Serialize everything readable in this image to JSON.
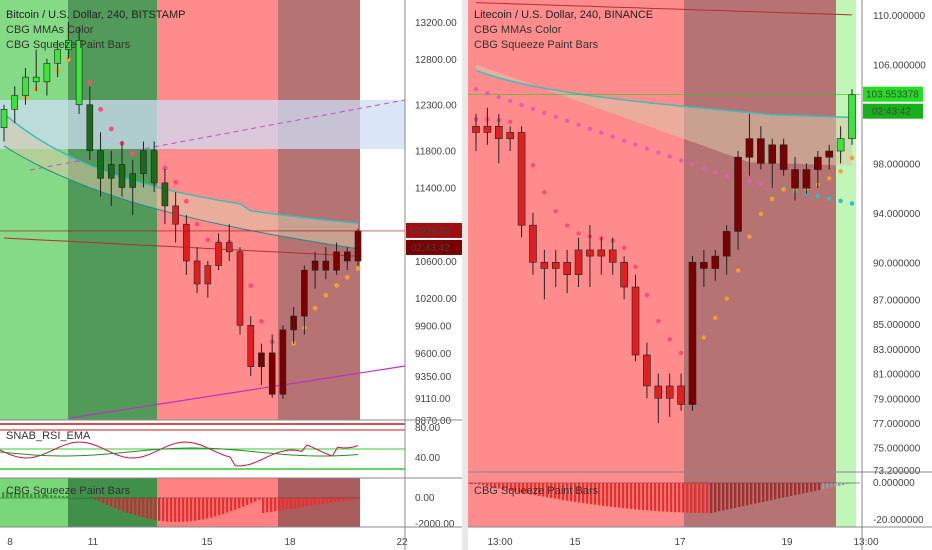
{
  "panels": [
    {
      "id": "btc",
      "legend": [
        "Bitcoin / U.S. Dollar, 240, BITSTAMP",
        "CBG MMAs Color",
        "CBG Squeeze Paint Bars"
      ],
      "price_ticks": [
        "13200.00",
        "12800.00",
        "12300.00",
        "11800.00",
        "11400.00",
        "10926.81",
        "10600.00",
        "10200.00",
        "9900.00",
        "9600.00",
        "9350.00",
        "9110.00",
        "8870.00"
      ],
      "last_price": "10926.81",
      "countdown": "02:43:42",
      "rsi_label": "SNAB_RSI_EMA",
      "rsi_ticks": [
        "80.00",
        "40.00"
      ],
      "squeeze_label": "CBG Squeeze Paint Bars",
      "squeeze_ticks": [
        "0.00",
        "-2000.00"
      ],
      "x_ticks": [
        "8",
        "11",
        "15",
        "18",
        "22"
      ],
      "zones": [
        "green",
        "darkgreen",
        "red",
        "darkred"
      ],
      "candles": [
        [
          12050,
          12300,
          11900,
          12250
        ],
        [
          12250,
          12500,
          12100,
          12400
        ],
        [
          12400,
          12700,
          12300,
          12600
        ],
        [
          12600,
          12900,
          12450,
          12550
        ],
        [
          12550,
          12800,
          12400,
          12750
        ],
        [
          12750,
          13000,
          12600,
          12900
        ],
        [
          12900,
          13200,
          12800,
          13000
        ],
        [
          13000,
          13150,
          12200,
          12300
        ],
        [
          12300,
          12500,
          11700,
          11800
        ],
        [
          11800,
          12000,
          11300,
          11500
        ],
        [
          11500,
          11800,
          11200,
          11650
        ],
        [
          11650,
          11900,
          11300,
          11400
        ],
        [
          11400,
          11700,
          11100,
          11550
        ],
        [
          11550,
          11900,
          11400,
          11800
        ],
        [
          11800,
          11900,
          11350,
          11450
        ],
        [
          11450,
          11600,
          11000,
          11200
        ],
        [
          11200,
          11350,
          10800,
          11000
        ],
        [
          11000,
          11100,
          10450,
          10600
        ],
        [
          10600,
          10750,
          10250,
          10350
        ],
        [
          10350,
          10600,
          10200,
          10550
        ],
        [
          10550,
          10900,
          10500,
          10800
        ],
        [
          10800,
          11000,
          10600,
          10700
        ],
        [
          10700,
          10750,
          9800,
          9900
        ],
        [
          9900,
          10000,
          9350,
          9450
        ],
        [
          9450,
          9700,
          9250,
          9600
        ],
        [
          9600,
          9800,
          9110,
          9150
        ],
        [
          9150,
          9900,
          9100,
          9850
        ],
        [
          9850,
          10100,
          9700,
          10000
        ],
        [
          10000,
          10550,
          9800,
          10500
        ],
        [
          10500,
          10700,
          10300,
          10600
        ],
        [
          10600,
          10750,
          10400,
          10500
        ],
        [
          10500,
          10800,
          10450,
          10700
        ],
        [
          10700,
          10750,
          10500,
          10600
        ],
        [
          10600,
          10950,
          10550,
          10926.81
        ]
      ],
      "candle_colors": [
        "lime",
        "lime",
        "lime",
        "lime",
        "lime",
        "lime",
        "lime",
        "lime",
        "green",
        "green",
        "green",
        "green",
        "green",
        "green",
        "green",
        "green",
        "red",
        "red",
        "red",
        "red",
        "red",
        "red",
        "red",
        "red",
        "darkred",
        "darkred",
        "darkred",
        "darkred",
        "darkred",
        "darkred",
        "darkred",
        "darkred",
        "darkred",
        "darkred"
      ]
    },
    {
      "id": "ltc",
      "legend": [
        "Litecoin / U.S. Dollar, 240, BINANCE",
        "CBG MMAs Color",
        "CBG Squeeze Paint Bars"
      ],
      "price_ticks": [
        "110.000000",
        "106.000000",
        "103.553378",
        "98.000000",
        "94.000000",
        "90.000000",
        "87.000000",
        "85.000000",
        "83.000000",
        "81.000000",
        "79.000000",
        "77.000000",
        "75.000000",
        "73.200000"
      ],
      "last_price": "103.553378",
      "countdown": "02:43:42",
      "squeeze_label": "CBG Squeeze Paint Bars",
      "squeeze_ticks": [
        "0.000000",
        "-20.000000"
      ],
      "x_ticks": [
        "13:00",
        "15",
        "17",
        "19",
        "13:00"
      ],
      "zones": [
        "red",
        "darkred",
        "lightgreen"
      ],
      "candles": [
        [
          101,
          102,
          99,
          100.5
        ],
        [
          100.5,
          102.5,
          99.5,
          101
        ],
        [
          101,
          102,
          98,
          100
        ],
        [
          100,
          101,
          99,
          100.5
        ],
        [
          100.5,
          101,
          92,
          93
        ],
        [
          93,
          94,
          89,
          90
        ],
        [
          90,
          91,
          87,
          89.5
        ],
        [
          89.5,
          91,
          88,
          90
        ],
        [
          90,
          91,
          87.5,
          89
        ],
        [
          89,
          92,
          88,
          91
        ],
        [
          91,
          93,
          88,
          90.5
        ],
        [
          90.5,
          92,
          89,
          91
        ],
        [
          91,
          92,
          89,
          90
        ],
        [
          90,
          90.5,
          87,
          88
        ],
        [
          88,
          89,
          82,
          82.5
        ],
        [
          82.5,
          83.5,
          79,
          80
        ],
        [
          80,
          81,
          77,
          79
        ],
        [
          79,
          81,
          77.5,
          80
        ],
        [
          80,
          81,
          78,
          78.5
        ],
        [
          78.5,
          90.5,
          78,
          90
        ],
        [
          90,
          91,
          88,
          89.5
        ],
        [
          89.5,
          91,
          88.5,
          90.5
        ],
        [
          90.5,
          93,
          89,
          92.5
        ],
        [
          92.5,
          99,
          91,
          98.5
        ],
        [
          98.5,
          102,
          97,
          100
        ],
        [
          100,
          101,
          97.5,
          98
        ],
        [
          98,
          100,
          96,
          99.5
        ],
        [
          99.5,
          100,
          97,
          97.5
        ],
        [
          97.5,
          98.5,
          95,
          96
        ],
        [
          96,
          98,
          95.5,
          97.5
        ],
        [
          97.5,
          99,
          96,
          98.5
        ],
        [
          98.5,
          99.5,
          97.5,
          99
        ],
        [
          99,
          101,
          98,
          100
        ],
        [
          100,
          104,
          99.5,
          103.553378
        ]
      ],
      "candle_colors": [
        "red",
        "red",
        "red",
        "red",
        "red",
        "red",
        "red",
        "red",
        "red",
        "red",
        "red",
        "red",
        "red",
        "red",
        "red",
        "red",
        "red",
        "red",
        "red",
        "darkred",
        "darkred",
        "darkred",
        "darkred",
        "darkred",
        "darkred",
        "darkred",
        "darkred",
        "darkred",
        "darkred",
        "darkred",
        "darkred",
        "darkred",
        "lime",
        "lime"
      ]
    }
  ],
  "colors": {
    "green_zone": "#78d678",
    "darkgreen_zone": "#3f8f47",
    "red_zone": "#ff8080",
    "darkred_zone": "#a85a5a",
    "lime": "#39e639",
    "green": "#1a6b1a",
    "red": "#e02020",
    "darkred": "#7a0000",
    "last_price_btc": "#a01010",
    "last_price_ltc": "#22dd22"
  },
  "chart_data": [
    {
      "type": "candlestick",
      "title": "Bitcoin / U.S. Dollar, 240, BITSTAMP",
      "x_ticks": [
        "8",
        "11",
        "15",
        "18",
        "22"
      ],
      "ylim": [
        8870,
        13200
      ],
      "last": 10926.81
    },
    {
      "type": "candlestick",
      "title": "Litecoin / U.S. Dollar, 240, BINANCE",
      "x_ticks": [
        "13:00",
        "15",
        "17",
        "19",
        "13:00"
      ],
      "ylim": [
        73.2,
        110
      ],
      "last": 103.553378
    }
  ]
}
